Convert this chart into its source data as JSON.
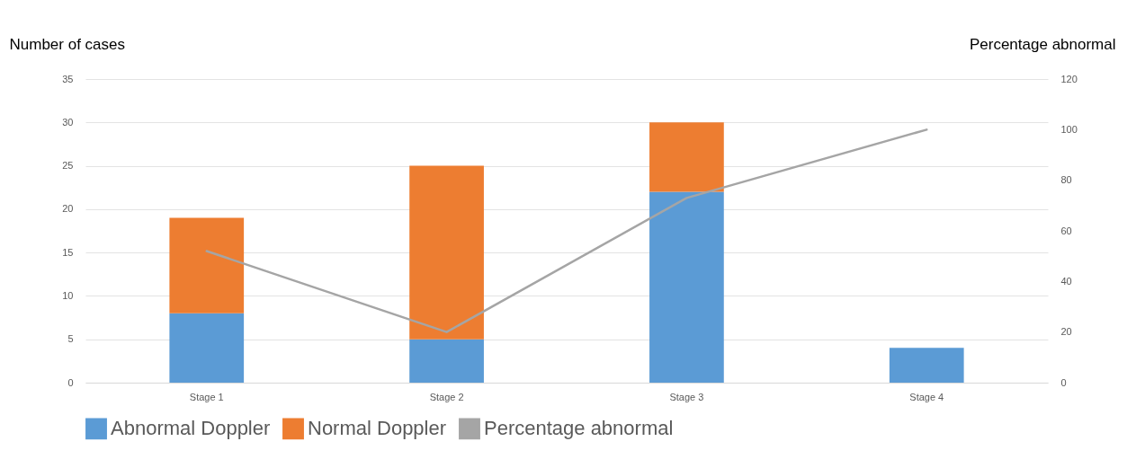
{
  "chart_data": {
    "type": "bar",
    "stacked": true,
    "ylabel": "Number of cases",
    "y2label": "Percentage abnormal",
    "categories": [
      "Stage 1",
      "Stage 2",
      "Stage 3",
      "Stage 4"
    ],
    "series": [
      {
        "name": "Abnormal Doppler",
        "color": "#5b9bd5",
        "values": [
          8,
          5,
          22,
          4
        ]
      },
      {
        "name": "Normal Doppler",
        "color": "#ed7d31",
        "values": [
          11,
          20,
          8,
          null
        ]
      },
      {
        "name": "Percentage abnormal",
        "type": "line",
        "axis": "y2",
        "color": "#a5a5a5",
        "values": [
          52,
          20,
          73,
          100
        ]
      }
    ],
    "ylim": [
      0,
      35
    ],
    "yticks": [
      0,
      5,
      10,
      15,
      20,
      25,
      30,
      35
    ],
    "y2lim": [
      0,
      120
    ],
    "y2ticks": [
      0,
      20,
      40,
      60,
      80,
      100,
      120
    ],
    "grid": "y",
    "legend": "bottom"
  }
}
